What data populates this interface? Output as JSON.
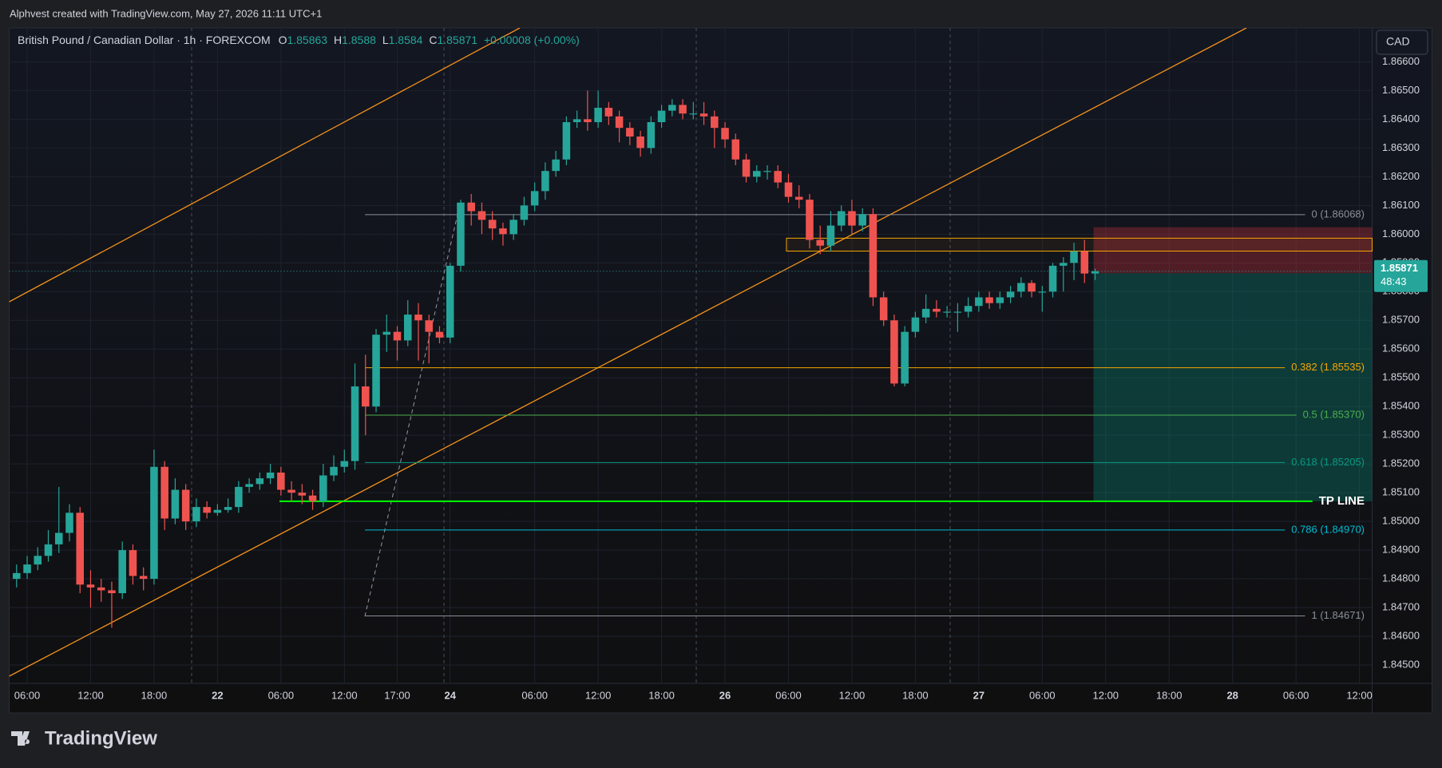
{
  "header": "Alphvest created with TradingView.com, May 27, 2026 11:11 UTC+1",
  "brand": "TradingView",
  "currency_button": "CAD",
  "chart_data": {
    "type": "candlestick",
    "legend": {
      "symbol": "British Pound / Canadian Dollar · 1h · FOREXCOM",
      "ohlc_labels": [
        "O",
        "H",
        "L",
        "C"
      ],
      "open": 1.85863,
      "high": 1.8588,
      "low": 1.8584,
      "close": 1.85871,
      "change": "+0.00008 (+0.00%)"
    },
    "up_color": "#26a69a",
    "down_color": "#ef5350",
    "open": [
      1.848,
      1.8482,
      1.8485,
      1.8488,
      1.8492,
      1.8496,
      1.8503,
      1.8478,
      1.8477,
      1.8476,
      1.8475,
      1.849,
      1.8481,
      1.848,
      1.8519,
      1.8501,
      1.8511,
      1.85,
      1.8505,
      1.8503,
      1.8504,
      1.8505,
      1.8512,
      1.8513,
      1.8515,
      1.8517,
      1.8511,
      1.851,
      1.8509,
      1.8507,
      1.8516,
      1.8519,
      1.8521,
      1.8547,
      1.854,
      1.8565,
      1.8566,
      1.8563,
      1.8572,
      1.857,
      1.8566,
      1.8564,
      1.8589,
      1.8611,
      1.8608,
      1.8605,
      1.8602,
      1.86,
      1.8605,
      1.861,
      1.8615,
      1.8622,
      1.8626,
      1.8639,
      1.864,
      1.8639,
      1.8644,
      1.8641,
      1.8637,
      1.8634,
      1.863,
      1.8639,
      1.8643,
      1.8645,
      1.8642,
      1.8642,
      1.8641,
      1.8637,
      1.8633,
      1.8626,
      1.862,
      1.8622,
      1.8622,
      1.8618,
      1.8613,
      1.8612,
      1.8598,
      1.8596,
      1.8603,
      1.8608,
      1.8603,
      1.8607,
      1.8578,
      1.857,
      1.8548,
      1.8566,
      1.8571,
      1.8574,
      1.8573,
      1.8573,
      1.8573,
      1.8575,
      1.8578,
      1.8576,
      1.8578,
      1.858,
      1.8583,
      1.858,
      1.858,
      1.8589,
      1.859,
      1.8594,
      1.85863
    ],
    "high": [
      1.8485,
      1.8488,
      1.8491,
      1.8497,
      1.8512,
      1.8506,
      1.8505,
      1.8483,
      1.848,
      1.8479,
      1.8493,
      1.8492,
      1.8484,
      1.8525,
      1.8521,
      1.8515,
      1.8513,
      1.8508,
      1.8507,
      1.8506,
      1.8508,
      1.8514,
      1.8515,
      1.8517,
      1.852,
      1.8519,
      1.8514,
      1.8513,
      1.8511,
      1.852,
      1.8523,
      1.8525,
      1.8555,
      1.8558,
      1.8567,
      1.8572,
      1.8568,
      1.8577,
      1.8576,
      1.8572,
      1.8568,
      1.859,
      1.8612,
      1.8614,
      1.8611,
      1.8608,
      1.8604,
      1.8607,
      1.8613,
      1.8618,
      1.8625,
      1.8629,
      1.8641,
      1.8643,
      1.865,
      1.865,
      1.8646,
      1.8643,
      1.8639,
      1.8636,
      1.8641,
      1.8645,
      1.8647,
      1.8647,
      1.8646,
      1.8646,
      1.8643,
      1.8639,
      1.8635,
      1.8628,
      1.8624,
      1.8624,
      1.8624,
      1.8621,
      1.8617,
      1.8614,
      1.8603,
      1.8608,
      1.861,
      1.8612,
      1.8609,
      1.8609,
      1.858,
      1.8572,
      1.8568,
      1.8573,
      1.8579,
      1.8577,
      1.8575,
      1.8576,
      1.8578,
      1.858,
      1.858,
      1.858,
      1.8582,
      1.8585,
      1.8584,
      1.8582,
      1.859,
      1.8592,
      1.8597,
      1.8598,
      1.8588
    ],
    "low": [
      1.8477,
      1.848,
      1.8483,
      1.8486,
      1.8489,
      1.8493,
      1.8475,
      1.847,
      1.8472,
      1.8463,
      1.8473,
      1.8478,
      1.8476,
      1.8478,
      1.8497,
      1.8499,
      1.8497,
      1.8498,
      1.8501,
      1.8502,
      1.8503,
      1.8503,
      1.851,
      1.8511,
      1.8513,
      1.8509,
      1.8507,
      1.8506,
      1.8504,
      1.8505,
      1.8514,
      1.8517,
      1.8518,
      1.853,
      1.8538,
      1.8559,
      1.8556,
      1.8561,
      1.8556,
      1.8555,
      1.8562,
      1.8562,
      1.8587,
      1.8603,
      1.86,
      1.8598,
      1.8596,
      1.8598,
      1.8603,
      1.8608,
      1.8612,
      1.862,
      1.8624,
      1.8637,
      1.8636,
      1.8637,
      1.8638,
      1.8632,
      1.8631,
      1.8627,
      1.8628,
      1.8637,
      1.8641,
      1.864,
      1.864,
      1.8638,
      1.863,
      1.863,
      1.8624,
      1.8618,
      1.8618,
      1.8619,
      1.8616,
      1.8611,
      1.8609,
      1.8595,
      1.8593,
      1.8594,
      1.8601,
      1.86,
      1.8601,
      1.8575,
      1.8568,
      1.8547,
      1.8547,
      1.8564,
      1.8569,
      1.8571,
      1.8571,
      1.8566,
      1.8571,
      1.8573,
      1.8574,
      1.8574,
      1.8576,
      1.8578,
      1.8578,
      1.8573,
      1.8578,
      1.858,
      1.8584,
      1.8583,
      1.8584
    ],
    "close": [
      1.8482,
      1.8485,
      1.8488,
      1.8492,
      1.8496,
      1.8503,
      1.8478,
      1.8477,
      1.8476,
      1.8475,
      1.849,
      1.8481,
      1.848,
      1.8519,
      1.8501,
      1.8511,
      1.85,
      1.8505,
      1.8503,
      1.8504,
      1.8505,
      1.8512,
      1.8513,
      1.8515,
      1.8517,
      1.8511,
      1.851,
      1.8509,
      1.8507,
      1.8516,
      1.8519,
      1.8521,
      1.8547,
      1.854,
      1.8565,
      1.8566,
      1.8563,
      1.8572,
      1.857,
      1.8566,
      1.8564,
      1.8589,
      1.8611,
      1.8608,
      1.8605,
      1.8602,
      1.86,
      1.8605,
      1.861,
      1.8615,
      1.8622,
      1.8626,
      1.8639,
      1.864,
      1.8639,
      1.8644,
      1.8641,
      1.8637,
      1.8634,
      1.863,
      1.8639,
      1.8643,
      1.8645,
      1.8642,
      1.8642,
      1.8641,
      1.8637,
      1.8633,
      1.8626,
      1.862,
      1.8622,
      1.8622,
      1.8618,
      1.8613,
      1.8612,
      1.8598,
      1.8596,
      1.8603,
      1.8608,
      1.8603,
      1.8607,
      1.8578,
      1.857,
      1.8548,
      1.8566,
      1.8571,
      1.8574,
      1.8573,
      1.8573,
      1.8573,
      1.8575,
      1.8578,
      1.8576,
      1.8578,
      1.858,
      1.8583,
      1.858,
      1.858,
      1.8589,
      1.859,
      1.8594,
      1.85863,
      1.85871
    ],
    "xlim": [
      -0.7,
      128.2
    ],
    "xticks": [
      {
        "value": 1,
        "label": "06:00"
      },
      {
        "value": 7,
        "label": "12:00"
      },
      {
        "value": 13,
        "label": "18:00"
      },
      {
        "value": 19,
        "label": "22"
      },
      {
        "value": 25,
        "label": "06:00"
      },
      {
        "value": 31,
        "label": "12:00"
      },
      {
        "value": 36,
        "label": "17:00"
      },
      {
        "value": 41,
        "label": "24"
      },
      {
        "value": 49,
        "label": "06:00"
      },
      {
        "value": 55,
        "label": "12:00"
      },
      {
        "value": 61,
        "label": "18:00"
      },
      {
        "value": 67,
        "label": "26"
      },
      {
        "value": 73,
        "label": "06:00"
      },
      {
        "value": 79,
        "label": "12:00"
      },
      {
        "value": 85,
        "label": "18:00"
      },
      {
        "value": 91,
        "label": "27"
      },
      {
        "value": 97,
        "label": "06:00"
      },
      {
        "value": 103,
        "label": "12:00"
      },
      {
        "value": 109,
        "label": "18:00"
      },
      {
        "value": 115,
        "label": "28"
      },
      {
        "value": 121,
        "label": "06:00"
      },
      {
        "value": 127,
        "label": "12:00"
      }
    ],
    "ylim": [
      1.84436,
      1.86718
    ],
    "yticks": [
      {
        "value": 1.845,
        "label": "1.84500"
      },
      {
        "value": 1.846,
        "label": "1.84600"
      },
      {
        "value": 1.847,
        "label": "1.84700"
      },
      {
        "value": 1.848,
        "label": "1.84800"
      },
      {
        "value": 1.849,
        "label": "1.84900"
      },
      {
        "value": 1.85,
        "label": "1.85000"
      },
      {
        "value": 1.851,
        "label": "1.85100"
      },
      {
        "value": 1.852,
        "label": "1.85200"
      },
      {
        "value": 1.853,
        "label": "1.85300"
      },
      {
        "value": 1.854,
        "label": "1.85400"
      },
      {
        "value": 1.855,
        "label": "1.85500"
      },
      {
        "value": 1.856,
        "label": "1.85600"
      },
      {
        "value": 1.857,
        "label": "1.85700"
      },
      {
        "value": 1.858,
        "label": "1.85800"
      },
      {
        "value": 1.859,
        "label": "1.85900"
      },
      {
        "value": 1.86,
        "label": "1.86000"
      },
      {
        "value": 1.861,
        "label": "1.86100"
      },
      {
        "value": 1.862,
        "label": "1.86200"
      },
      {
        "value": 1.863,
        "label": "1.86300"
      },
      {
        "value": 1.864,
        "label": "1.86400"
      },
      {
        "value": 1.865,
        "label": "1.86500"
      },
      {
        "value": 1.866,
        "label": "1.86600"
      }
    ],
    "grid": true,
    "fib_levels": [
      {
        "label": "0 (1.86068)",
        "value": 1.86068,
        "color": "#8a8e99"
      },
      {
        "label": "0.382 (1.85535)",
        "value": 1.85535,
        "color": "#f7a600"
      },
      {
        "label": "0.5 (1.85370)",
        "value": 1.8537,
        "color": "#4caf50"
      },
      {
        "label": "0.618 (1.85205)",
        "value": 1.85205,
        "color": "#089981"
      },
      {
        "label": "0.786 (1.84970)",
        "value": 1.8497,
        "color": "#00bcd4"
      },
      {
        "label": "1 (1.84671)",
        "value": 1.84671,
        "color": "#8a8e99"
      }
    ],
    "tp_line": {
      "label": "TP LINE",
      "value": 1.8507,
      "color": "#00ff00"
    },
    "zone": {
      "top": 1.85986,
      "bottom": 1.85941,
      "color": "#f7a600"
    },
    "position": {
      "stop": 1.86024,
      "entry": 1.85864,
      "target": 1.8507
    },
    "price_tag": {
      "value": 1.85871,
      "countdown": "48:43"
    }
  }
}
